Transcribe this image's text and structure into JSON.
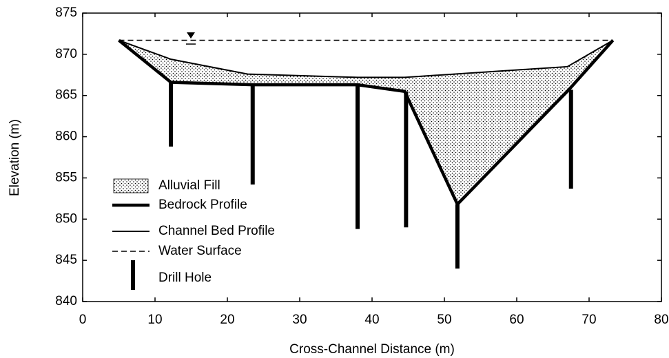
{
  "chart_data": {
    "type": "cross-section",
    "xlabel": "Cross-Channel Distance (m)",
    "ylabel": "Elevation (m)",
    "xlim": [
      0,
      80
    ],
    "xticks": [
      0,
      10,
      20,
      30,
      40,
      50,
      60,
      70,
      80
    ],
    "ylim": [
      840,
      875
    ],
    "yticks": [
      840,
      845,
      850,
      855,
      860,
      865,
      870,
      875
    ],
    "legend": "lower left",
    "fill": {
      "name": "Alluvial Fill"
    },
    "bedrock": {
      "name": "Bedrock Profile",
      "color": "#000000",
      "x": [
        5,
        12.2,
        23.5,
        38,
        44.5,
        51.8,
        67.2,
        73.3
      ],
      "values": [
        871.7,
        866.6,
        866.3,
        866.3,
        865.5,
        851.8,
        865.7,
        871.7
      ]
    },
    "channel_bed": {
      "name": "Channel Bed Profile",
      "color": "#000000",
      "x": [
        5,
        12.2,
        22.8,
        38,
        44.5,
        67,
        73.3
      ],
      "values": [
        871.7,
        869.4,
        867.6,
        867.2,
        867.2,
        868.5,
        871.7
      ]
    },
    "water_surface": {
      "name": "Water Surface",
      "color": "#000000",
      "x": [
        5,
        73.3
      ],
      "values": [
        871.7,
        871.7
      ]
    },
    "drill_holes": {
      "name": "Drill Hole",
      "color": "#000000",
      "x": [
        12.2,
        23.5,
        38,
        44.7,
        51.8,
        67.5
      ],
      "top": [
        866.6,
        866.3,
        866.3,
        865.5,
        851.8,
        865.7
      ],
      "bottom": [
        858.8,
        854.2,
        848.8,
        849.0,
        844.0,
        853.7
      ]
    }
  }
}
